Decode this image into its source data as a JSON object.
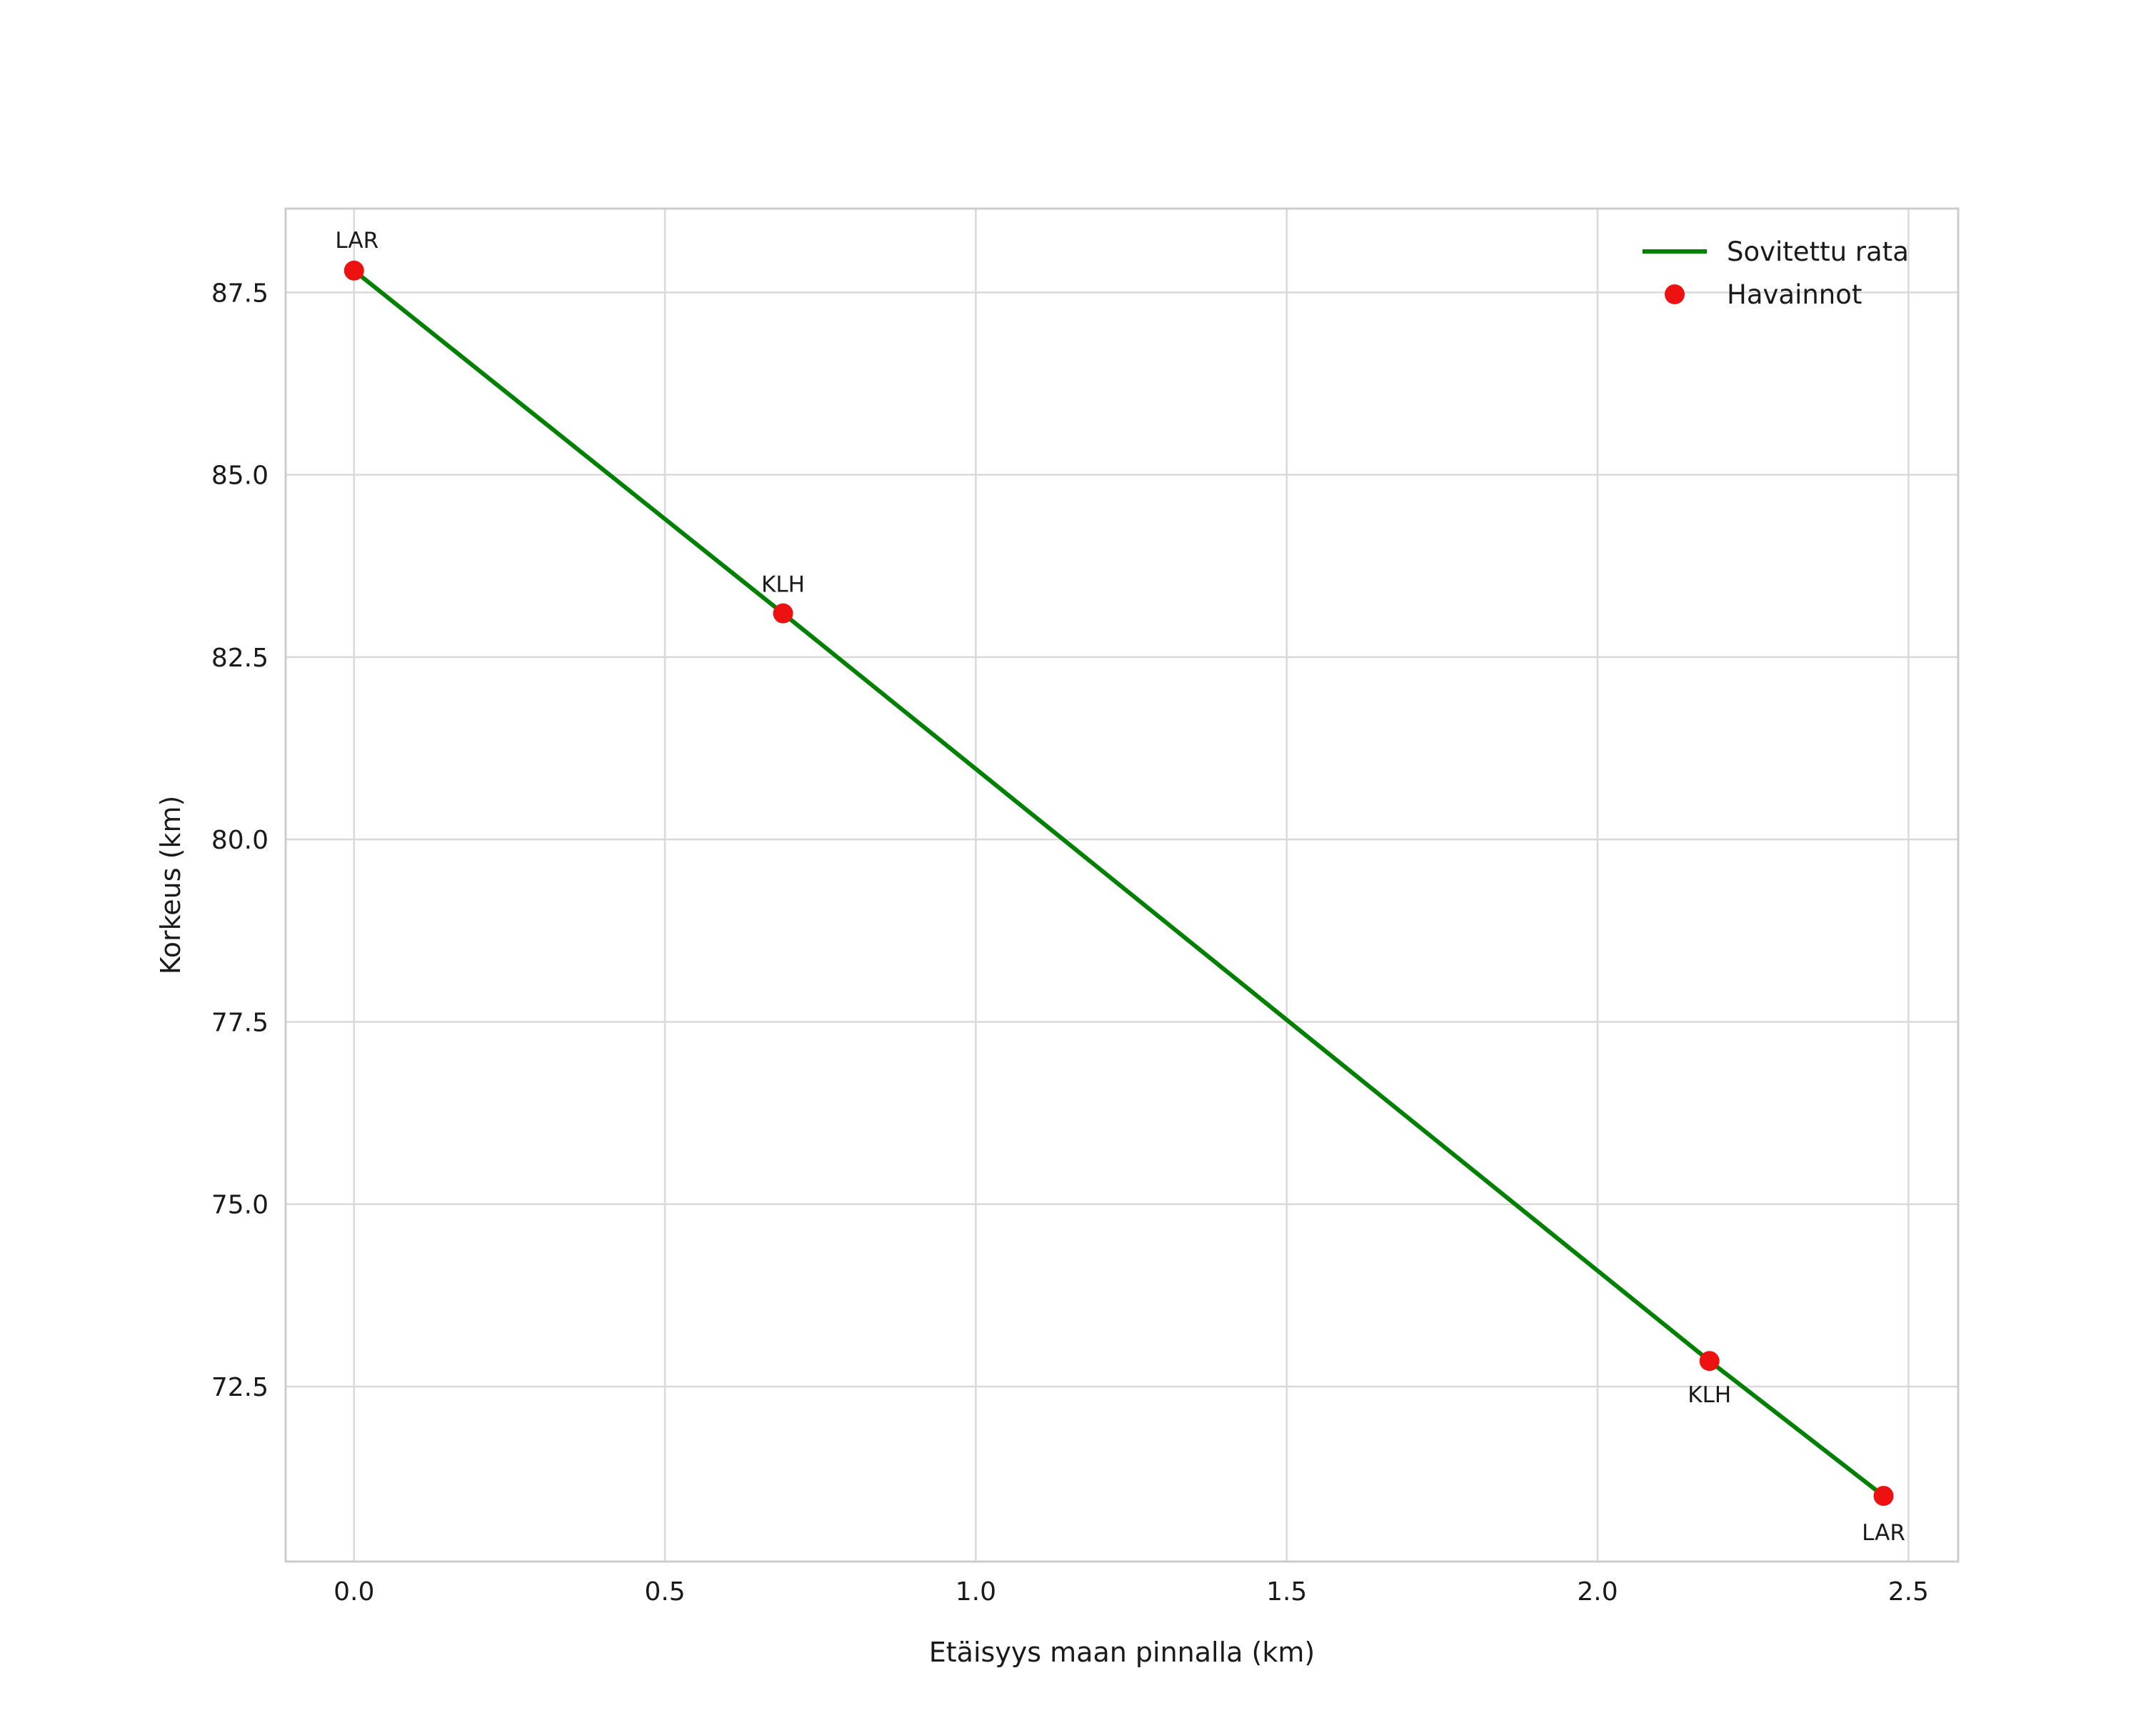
{
  "chart_data": {
    "type": "line",
    "title": "",
    "xlabel": "Etäisyys maan pinnalla (km)",
    "ylabel": "Korkeus (km)",
    "xlim": [
      -0.11,
      2.58
    ],
    "ylim": [
      70.1,
      88.65
    ],
    "grid": true,
    "x_ticks": [
      0.0,
      0.5,
      1.0,
      1.5,
      2.0,
      2.5
    ],
    "x_tick_labels": [
      "0.0",
      "0.5",
      "1.0",
      "1.5",
      "2.0",
      "2.5"
    ],
    "y_ticks": [
      72.5,
      75.0,
      77.5,
      80.0,
      82.5,
      85.0,
      87.5
    ],
    "y_tick_labels": [
      "72.5",
      "75.0",
      "77.5",
      "80.0",
      "82.5",
      "85.0",
      "87.5"
    ],
    "colors": {
      "line": "#008000",
      "points": "#ee1111",
      "grid": "#d9d9d9",
      "border": "#cccccc",
      "text": "#1a1a1a"
    },
    "legend": {
      "position": "upper right",
      "items": [
        {
          "label": "Sovitettu rata",
          "type": "line",
          "color": "#008000"
        },
        {
          "label": "Havainnot",
          "type": "point",
          "color": "#ee1111"
        }
      ]
    },
    "series": [
      {
        "name": "Sovitettu rata",
        "type": "line",
        "color": "#008000",
        "x": [
          0.0,
          0.69,
          2.18,
          2.46
        ],
        "y": [
          87.8,
          83.1,
          72.85,
          71.0
        ]
      },
      {
        "name": "Havainnot",
        "type": "scatter",
        "color": "#ee1111",
        "points": [
          {
            "x": 0.0,
            "y": 87.8,
            "label": "LAR",
            "label_dx": 4,
            "label_dy": -32,
            "label_anchor": "middle"
          },
          {
            "x": 0.69,
            "y": 83.1,
            "label": "KLH",
            "label_dx": 0,
            "label_dy": -30,
            "label_anchor": "middle"
          },
          {
            "x": 2.18,
            "y": 72.85,
            "label": "KLH",
            "label_dx": 0,
            "label_dy": 58,
            "label_anchor": "middle"
          },
          {
            "x": 2.46,
            "y": 71.0,
            "label": "LAR",
            "label_dx": 0,
            "label_dy": 62,
            "label_anchor": "middle"
          }
        ]
      }
    ]
  }
}
